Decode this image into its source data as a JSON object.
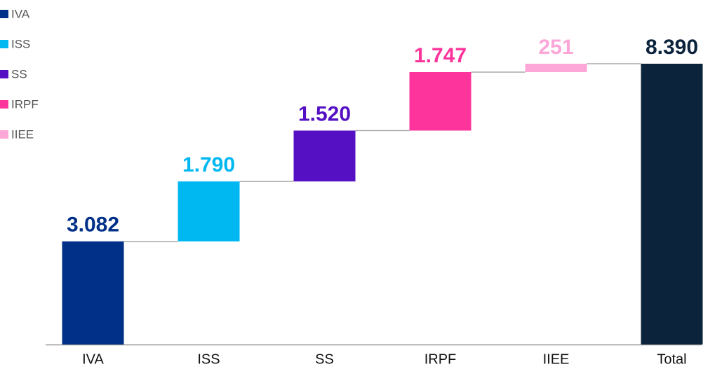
{
  "chart_data": {
    "type": "waterfall",
    "categories": [
      "IVA",
      "ISS",
      "SS",
      "IRPF",
      "IIEE"
    ],
    "values": [
      3082,
      1790,
      1520,
      1747,
      251
    ],
    "value_labels": [
      "3.082",
      "1.790",
      "1.520",
      "1.747",
      "251"
    ],
    "colors": [
      "#003087",
      "#00b8f1",
      "#5410c2",
      "#fd349c",
      "#fda6d8"
    ],
    "total": {
      "category": "Total",
      "value": 8390,
      "value_label": "8.390",
      "color": "#0c233c"
    },
    "legend": "upper left"
  }
}
